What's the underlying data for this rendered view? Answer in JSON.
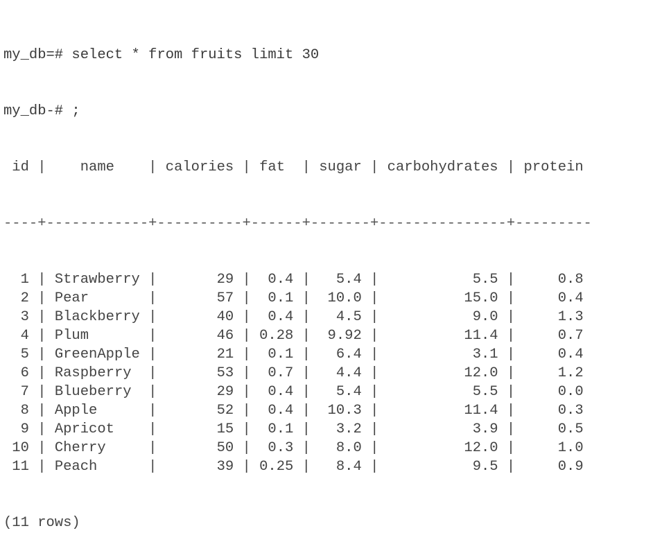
{
  "session": {
    "prompt": "my_db=# ",
    "command": "select * from fruits limit 30",
    "continuation_prompt": "my_db-# ",
    "continuation_command": ";"
  },
  "table": {
    "columns": [
      {
        "name": "id",
        "width": 4,
        "align": "right"
      },
      {
        "name": "name",
        "width": 12,
        "align": "left"
      },
      {
        "name": "calories",
        "width": 10,
        "align": "right"
      },
      {
        "name": "fat",
        "width": 6,
        "align": "right"
      },
      {
        "name": "sugar",
        "width": 7,
        "align": "right"
      },
      {
        "name": "carbohydrates",
        "width": 15,
        "align": "right"
      },
      {
        "name": "protein",
        "width": 9,
        "align": "right"
      }
    ],
    "rows": [
      [
        "1",
        "Strawberry",
        "29",
        "0.4",
        "5.4",
        "5.5",
        "0.8"
      ],
      [
        "2",
        "Pear",
        "57",
        "0.1",
        "10.0",
        "15.0",
        "0.4"
      ],
      [
        "3",
        "Blackberry",
        "40",
        "0.4",
        "4.5",
        "9.0",
        "1.3"
      ],
      [
        "4",
        "Plum",
        "46",
        "0.28",
        "9.92",
        "11.4",
        "0.7"
      ],
      [
        "5",
        "GreenApple",
        "21",
        "0.1",
        "6.4",
        "3.1",
        "0.4"
      ],
      [
        "6",
        "Raspberry",
        "53",
        "0.7",
        "4.4",
        "12.0",
        "1.2"
      ],
      [
        "7",
        "Blueberry",
        "29",
        "0.4",
        "5.4",
        "5.5",
        "0.0"
      ],
      [
        "8",
        "Apple",
        "52",
        "0.4",
        "10.3",
        "11.4",
        "0.3"
      ],
      [
        "9",
        "Apricot",
        "15",
        "0.1",
        "3.2",
        "3.9",
        "0.5"
      ],
      [
        "10",
        "Cherry",
        "50",
        "0.3",
        "8.0",
        "12.0",
        "1.0"
      ],
      [
        "11",
        "Peach",
        "39",
        "0.25",
        "8.4",
        "9.5",
        "0.9"
      ]
    ]
  },
  "footer": {
    "row_count_text": "(11 rows)"
  },
  "colors": {
    "background": "#ffffff",
    "text": "#444444"
  }
}
